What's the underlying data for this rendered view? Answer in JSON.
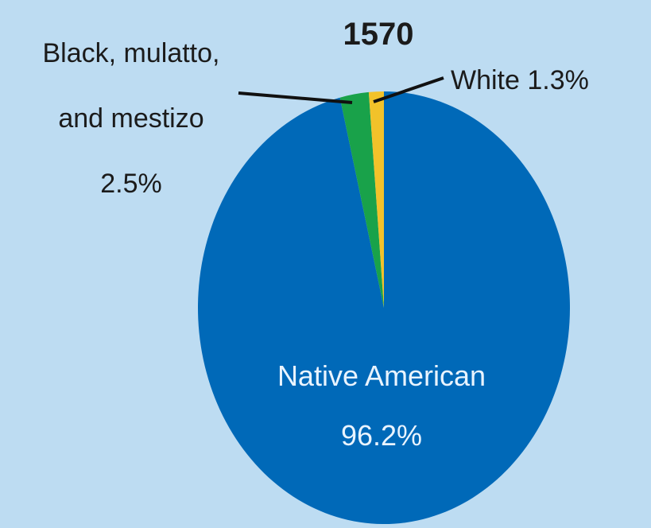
{
  "chart_data": {
    "type": "pie",
    "title": "1570",
    "slices": [
      {
        "label": "Native American",
        "value": 96.2,
        "value_label": "96.2%",
        "color": "#0069b8"
      },
      {
        "label": "Black, mulatto, and mestizo",
        "label_lines": [
          "Black, mulatto,",
          "and mestizo"
        ],
        "value": 2.5,
        "value_label": "2.5%",
        "color": "#19a24a"
      },
      {
        "label": "White",
        "value": 1.3,
        "value_label": "White 1.3%",
        "color": "#f2c22a"
      }
    ]
  }
}
